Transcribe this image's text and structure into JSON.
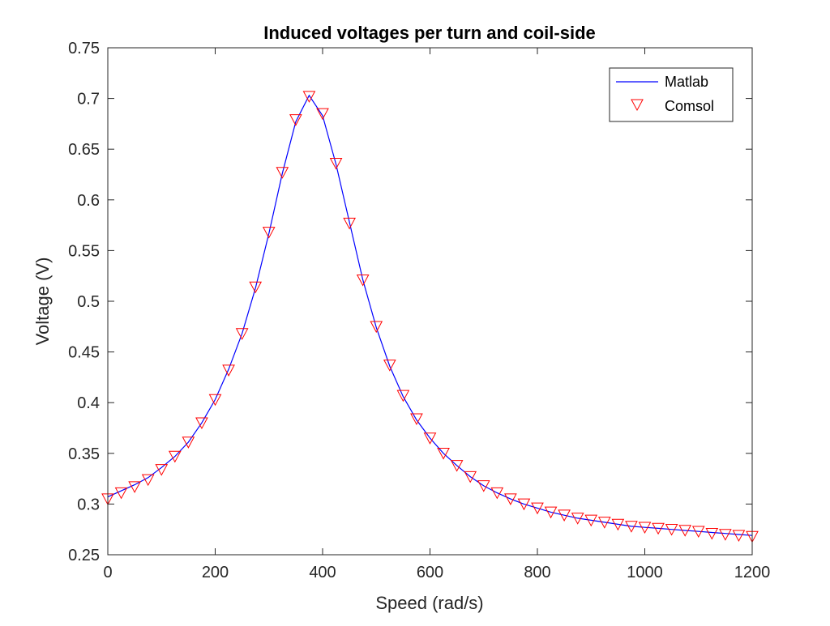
{
  "chart_data": {
    "type": "line",
    "title": "Induced voltages per turn and coil-side",
    "xlabel": "Speed (rad/s)",
    "ylabel": "Voltage (V)",
    "xlim": [
      0,
      1200
    ],
    "ylim": [
      0.25,
      0.75
    ],
    "xticks": [
      0,
      200,
      400,
      600,
      800,
      1000,
      1200
    ],
    "xtick_labels": [
      "0",
      "200",
      "400",
      "600",
      "800",
      "1000",
      "1200"
    ],
    "yticks": [
      0.25,
      0.3,
      0.35,
      0.4,
      0.45,
      0.5,
      0.55,
      0.6,
      0.65,
      0.7,
      0.75
    ],
    "ytick_labels": [
      "0.25",
      "0.3",
      "0.35",
      "0.4",
      "0.45",
      "0.5",
      "0.55",
      "0.6",
      "0.65",
      "0.7",
      "0.75"
    ],
    "grid": false,
    "legend": {
      "position": "top-right"
    },
    "series": [
      {
        "name": "Matlab",
        "style": "line",
        "color": "#0000ff",
        "x": [
          0,
          25,
          50,
          75,
          100,
          125,
          150,
          175,
          200,
          225,
          250,
          275,
          300,
          325,
          350,
          375,
          400,
          425,
          450,
          475,
          500,
          525,
          550,
          575,
          600,
          625,
          650,
          675,
          700,
          725,
          750,
          775,
          800,
          825,
          850,
          875,
          900,
          925,
          950,
          975,
          1000,
          1025,
          1050,
          1075,
          1100,
          1125,
          1150,
          1175,
          1200
        ],
        "y": [
          0.307,
          0.313,
          0.319,
          0.326,
          0.336,
          0.347,
          0.361,
          0.38,
          0.403,
          0.433,
          0.468,
          0.513,
          0.567,
          0.626,
          0.677,
          0.703,
          0.683,
          0.635,
          0.578,
          0.521,
          0.474,
          0.436,
          0.406,
          0.383,
          0.365,
          0.35,
          0.338,
          0.327,
          0.318,
          0.311,
          0.305,
          0.3,
          0.296,
          0.292,
          0.289,
          0.286,
          0.284,
          0.282,
          0.28,
          0.278,
          0.277,
          0.276,
          0.275,
          0.274,
          0.273,
          0.272,
          0.271,
          0.27,
          0.269
        ]
      },
      {
        "name": "Comsol",
        "style": "marker",
        "marker": "triangle-down",
        "color": "#ff0000",
        "x": [
          0,
          25,
          50,
          75,
          100,
          125,
          150,
          175,
          200,
          225,
          250,
          275,
          300,
          325,
          350,
          375,
          400,
          425,
          450,
          475,
          500,
          525,
          550,
          575,
          600,
          625,
          650,
          675,
          700,
          725,
          750,
          775,
          800,
          825,
          850,
          875,
          900,
          925,
          950,
          975,
          1000,
          1025,
          1050,
          1075,
          1100,
          1125,
          1150,
          1175,
          1200
        ],
        "y": [
          0.306,
          0.312,
          0.318,
          0.325,
          0.335,
          0.348,
          0.362,
          0.381,
          0.404,
          0.433,
          0.469,
          0.515,
          0.569,
          0.628,
          0.68,
          0.703,
          0.686,
          0.637,
          0.578,
          0.522,
          0.476,
          0.438,
          0.408,
          0.385,
          0.366,
          0.351,
          0.339,
          0.328,
          0.319,
          0.312,
          0.306,
          0.301,
          0.297,
          0.293,
          0.29,
          0.287,
          0.285,
          0.283,
          0.281,
          0.279,
          0.278,
          0.277,
          0.276,
          0.275,
          0.274,
          0.272,
          0.271,
          0.27,
          0.269
        ]
      }
    ]
  }
}
